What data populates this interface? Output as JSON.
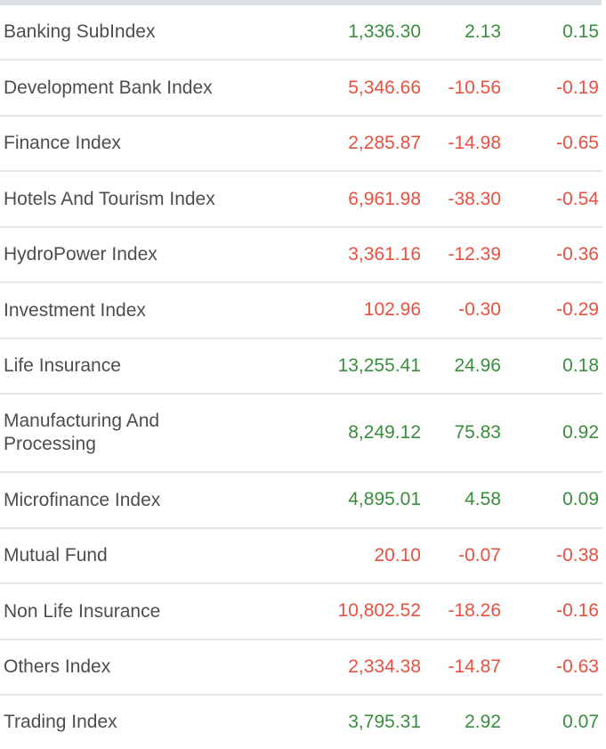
{
  "colors": {
    "positive": "#388e3c",
    "negative": "#e8503f",
    "label_text": "#4d4d4d",
    "divider": "#e4e6ea",
    "top_strip": "#dde1e6",
    "background": "#ffffff"
  },
  "table": {
    "rows": [
      {
        "label": "Banking SubIndex",
        "value": "1,336.30",
        "change": "2.13",
        "percent_change": "0.15",
        "direction": "up"
      },
      {
        "label": "Development Bank Index",
        "value": "5,346.66",
        "change": "-10.56",
        "percent_change": "-0.19",
        "direction": "down"
      },
      {
        "label": "Finance Index",
        "value": "2,285.87",
        "change": "-14.98",
        "percent_change": "-0.65",
        "direction": "down"
      },
      {
        "label": "Hotels And Tourism Index",
        "value": "6,961.98",
        "change": "-38.30",
        "percent_change": "-0.54",
        "direction": "down"
      },
      {
        "label": "HydroPower Index",
        "value": "3,361.16",
        "change": "-12.39",
        "percent_change": "-0.36",
        "direction": "down"
      },
      {
        "label": "Investment Index",
        "value": "102.96",
        "change": "-0.30",
        "percent_change": "-0.29",
        "direction": "down"
      },
      {
        "label": "Life Insurance",
        "value": "13,255.41",
        "change": "24.96",
        "percent_change": "0.18",
        "direction": "up"
      },
      {
        "label": "Manufacturing And Processing",
        "value": "8,249.12",
        "change": "75.83",
        "percent_change": "0.92",
        "direction": "up"
      },
      {
        "label": "Microfinance Index",
        "value": "4,895.01",
        "change": "4.58",
        "percent_change": "0.09",
        "direction": "up"
      },
      {
        "label": "Mutual Fund",
        "value": "20.10",
        "change": "-0.07",
        "percent_change": "-0.38",
        "direction": "down"
      },
      {
        "label": "Non Life Insurance",
        "value": "10,802.52",
        "change": "-18.26",
        "percent_change": "-0.16",
        "direction": "down"
      },
      {
        "label": "Others Index",
        "value": "2,334.38",
        "change": "-14.87",
        "percent_change": "-0.63",
        "direction": "down"
      },
      {
        "label": "Trading Index",
        "value": "3,795.31",
        "change": "2.92",
        "percent_change": "0.07",
        "direction": "up"
      }
    ]
  }
}
